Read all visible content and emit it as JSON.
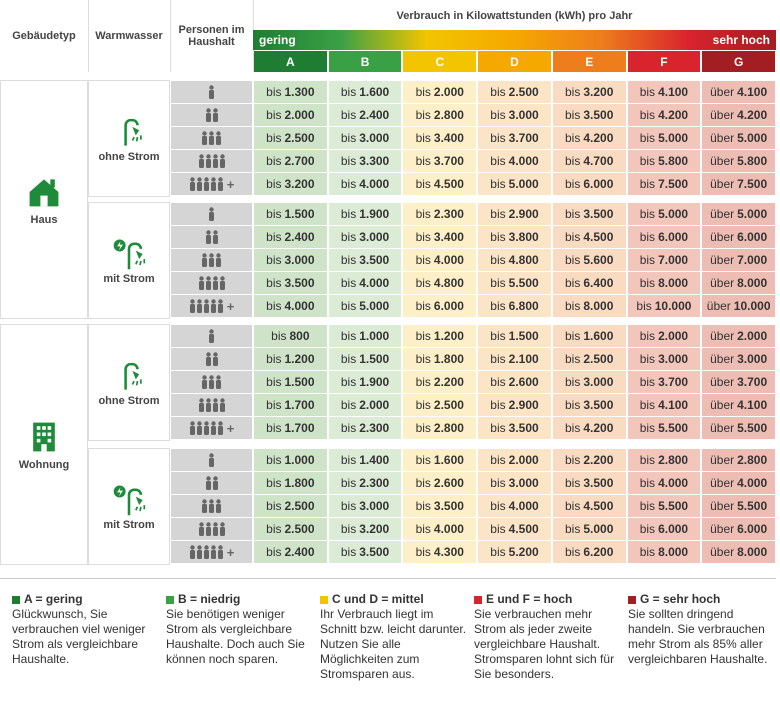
{
  "header": {
    "building": "Gebäudetyp",
    "water": "Warmwasser",
    "persons": "Personen im Haushalt",
    "consumption": "Verbrauch in Kilowattstunden (kWh) pro Jahr",
    "low": "gering",
    "high": "sehr hoch",
    "classes": [
      {
        "letter": "A",
        "color": "#1e7d32",
        "cell": "#cfe3c9"
      },
      {
        "letter": "B",
        "color": "#3aa046",
        "cell": "#dcebd6"
      },
      {
        "letter": "C",
        "color": "#f2c500",
        "cell": "#fdf0c9"
      },
      {
        "letter": "D",
        "color": "#f5a800",
        "cell": "#fce4c6"
      },
      {
        "letter": "E",
        "color": "#ee7d1c",
        "cell": "#f9dbc2"
      },
      {
        "letter": "F",
        "color": "#d9232d",
        "cell": "#f3c6bb"
      },
      {
        "letter": "G",
        "color": "#a31e22",
        "cell": "#edbdb4"
      }
    ]
  },
  "person_rows": [
    {
      "icons": 1
    },
    {
      "icons": 2
    },
    {
      "icons": 3
    },
    {
      "icons": 4
    },
    {
      "icons": 5,
      "suffix": "+"
    }
  ],
  "groups": [
    {
      "name": "Haus",
      "icon": "house",
      "sub": [
        {
          "name": "ohne Strom",
          "icon": "shower",
          "rows": [
            [
              [
                "bis",
                "1.300"
              ],
              [
                "bis",
                "1.600"
              ],
              [
                "bis",
                "2.000"
              ],
              [
                "bis",
                "2.500"
              ],
              [
                "bis",
                "3.200"
              ],
              [
                "bis",
                "4.100"
              ],
              [
                "über",
                "4.100"
              ]
            ],
            [
              [
                "bis",
                "2.000"
              ],
              [
                "bis",
                "2.400"
              ],
              [
                "bis",
                "2.800"
              ],
              [
                "bis",
                "3.000"
              ],
              [
                "bis",
                "3.500"
              ],
              [
                "bis",
                "4.200"
              ],
              [
                "über",
                "4.200"
              ]
            ],
            [
              [
                "bis",
                "2.500"
              ],
              [
                "bis",
                "3.000"
              ],
              [
                "bis",
                "3.400"
              ],
              [
                "bis",
                "3.700"
              ],
              [
                "bis",
                "4.200"
              ],
              [
                "bis",
                "5.000"
              ],
              [
                "über",
                "5.000"
              ]
            ],
            [
              [
                "bis",
                "2.700"
              ],
              [
                "bis",
                "3.300"
              ],
              [
                "bis",
                "3.700"
              ],
              [
                "bis",
                "4.000"
              ],
              [
                "bis",
                "4.700"
              ],
              [
                "bis",
                "5.800"
              ],
              [
                "über",
                "5.800"
              ]
            ],
            [
              [
                "bis",
                "3.200"
              ],
              [
                "bis",
                "4.000"
              ],
              [
                "bis",
                "4.500"
              ],
              [
                "bis",
                "5.000"
              ],
              [
                "bis",
                "6.000"
              ],
              [
                "bis",
                "7.500"
              ],
              [
                "über",
                "7.500"
              ]
            ]
          ]
        },
        {
          "name": "mit Strom",
          "icon": "electric",
          "rows": [
            [
              [
                "bis",
                "1.500"
              ],
              [
                "bis",
                "1.900"
              ],
              [
                "bis",
                "2.300"
              ],
              [
                "bis",
                "2.900"
              ],
              [
                "bis",
                "3.500"
              ],
              [
                "bis",
                "5.000"
              ],
              [
                "über",
                "5.000"
              ]
            ],
            [
              [
                "bis",
                "2.400"
              ],
              [
                "bis",
                "3.000"
              ],
              [
                "bis",
                "3.400"
              ],
              [
                "bis",
                "3.800"
              ],
              [
                "bis",
                "4.500"
              ],
              [
                "bis",
                "6.000"
              ],
              [
                "über",
                "6.000"
              ]
            ],
            [
              [
                "bis",
                "3.000"
              ],
              [
                "bis",
                "3.500"
              ],
              [
                "bis",
                "4.000"
              ],
              [
                "bis",
                "4.800"
              ],
              [
                "bis",
                "5.600"
              ],
              [
                "bis",
                "7.000"
              ],
              [
                "über",
                "7.000"
              ]
            ],
            [
              [
                "bis",
                "3.500"
              ],
              [
                "bis",
                "4.000"
              ],
              [
                "bis",
                "4.800"
              ],
              [
                "bis",
                "5.500"
              ],
              [
                "bis",
                "6.400"
              ],
              [
                "bis",
                "8.000"
              ],
              [
                "über",
                "8.000"
              ]
            ],
            [
              [
                "bis",
                "4.000"
              ],
              [
                "bis",
                "5.000"
              ],
              [
                "bis",
                "6.000"
              ],
              [
                "bis",
                "6.800"
              ],
              [
                "bis",
                "8.000"
              ],
              [
                "bis",
                "10.000"
              ],
              [
                "über",
                "10.000"
              ]
            ]
          ]
        }
      ]
    },
    {
      "name": "Wohnung",
      "icon": "building",
      "sub": [
        {
          "name": "ohne Strom",
          "icon": "shower",
          "rows": [
            [
              [
                "bis",
                "800"
              ],
              [
                "bis",
                "1.000"
              ],
              [
                "bis",
                "1.200"
              ],
              [
                "bis",
                "1.500"
              ],
              [
                "bis",
                "1.600"
              ],
              [
                "bis",
                "2.000"
              ],
              [
                "über",
                "2.000"
              ]
            ],
            [
              [
                "bis",
                "1.200"
              ],
              [
                "bis",
                "1.500"
              ],
              [
                "bis",
                "1.800"
              ],
              [
                "bis",
                "2.100"
              ],
              [
                "bis",
                "2.500"
              ],
              [
                "bis",
                "3.000"
              ],
              [
                "über",
                "3.000"
              ]
            ],
            [
              [
                "bis",
                "1.500"
              ],
              [
                "bis",
                "1.900"
              ],
              [
                "bis",
                "2.200"
              ],
              [
                "bis",
                "2.600"
              ],
              [
                "bis",
                "3.000"
              ],
              [
                "bis",
                "3.700"
              ],
              [
                "über",
                "3.700"
              ]
            ],
            [
              [
                "bis",
                "1.700"
              ],
              [
                "bis",
                "2.000"
              ],
              [
                "bis",
                "2.500"
              ],
              [
                "bis",
                "2.900"
              ],
              [
                "bis",
                "3.500"
              ],
              [
                "bis",
                "4.100"
              ],
              [
                "über",
                "4.100"
              ]
            ],
            [
              [
                "bis",
                "1.700"
              ],
              [
                "bis",
                "2.300"
              ],
              [
                "bis",
                "2.800"
              ],
              [
                "bis",
                "3.500"
              ],
              [
                "bis",
                "4.200"
              ],
              [
                "bis",
                "5.500"
              ],
              [
                "über",
                "5.500"
              ]
            ]
          ]
        },
        {
          "name": "mit Strom",
          "icon": "electric",
          "rows": [
            [
              [
                "bis",
                "1.000"
              ],
              [
                "bis",
                "1.400"
              ],
              [
                "bis",
                "1.600"
              ],
              [
                "bis",
                "2.000"
              ],
              [
                "bis",
                "2.200"
              ],
              [
                "bis",
                "2.800"
              ],
              [
                "über",
                "2.800"
              ]
            ],
            [
              [
                "bis",
                "1.800"
              ],
              [
                "bis",
                "2.300"
              ],
              [
                "bis",
                "2.600"
              ],
              [
                "bis",
                "3.000"
              ],
              [
                "bis",
                "3.500"
              ],
              [
                "bis",
                "4.000"
              ],
              [
                "über",
                "4.000"
              ]
            ],
            [
              [
                "bis",
                "2.500"
              ],
              [
                "bis",
                "3.000"
              ],
              [
                "bis",
                "3.500"
              ],
              [
                "bis",
                "4.000"
              ],
              [
                "bis",
                "4.500"
              ],
              [
                "bis",
                "5.500"
              ],
              [
                "über",
                "5.500"
              ]
            ],
            [
              [
                "bis",
                "2.500"
              ],
              [
                "bis",
                "3.200"
              ],
              [
                "bis",
                "4.000"
              ],
              [
                "bis",
                "4.500"
              ],
              [
                "bis",
                "5.000"
              ],
              [
                "bis",
                "6.000"
              ],
              [
                "über",
                "6.000"
              ]
            ],
            [
              [
                "bis",
                "2.400"
              ],
              [
                "bis",
                "3.500"
              ],
              [
                "bis",
                "4.300"
              ],
              [
                "bis",
                "5.200"
              ],
              [
                "bis",
                "6.200"
              ],
              [
                "bis",
                "8.000"
              ],
              [
                "über",
                "8.000"
              ]
            ]
          ]
        }
      ]
    }
  ],
  "legend": [
    {
      "key": "A = gering",
      "color": "#1e7d32",
      "text": "Glückwunsch, Sie verbrauchen viel weniger Strom als vergleichbare Haushalte."
    },
    {
      "key": "B = niedrig",
      "color": "#3aa046",
      "text": "Sie benötigen weniger Strom als vergleichbare Haushalte. Doch auch Sie können noch sparen."
    },
    {
      "key": "C und D = mittel",
      "color": "#f2c500",
      "text": "Ihr Verbrauch liegt im Schnitt bzw. leicht darunter. Nutzen Sie alle Möglichkeiten zum Stromsparen aus."
    },
    {
      "key": "E und F = hoch",
      "color": "#d9232d",
      "text": "Sie verbrauchen mehr Strom als jeder zweite vergleichbare Haushalt. Stromsparen lohnt sich für Sie besonders."
    },
    {
      "key": "G = sehr hoch",
      "color": "#a31e22",
      "text": "Sie sollten dringend handeln. Sie verbrauchen mehr Strom als 85% aller vergleichbaren Haushalte."
    }
  ]
}
